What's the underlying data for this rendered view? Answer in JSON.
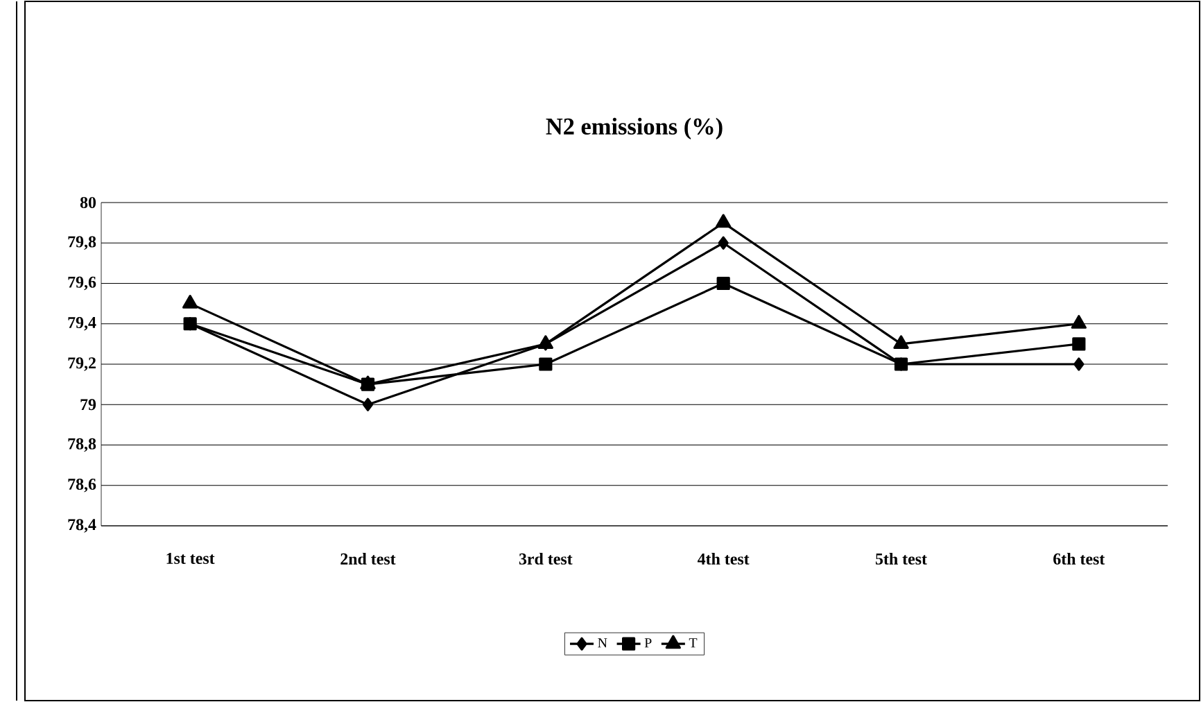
{
  "chart_data": {
    "type": "line",
    "title": "N2 emissions  (%)",
    "categories": [
      "1st test",
      "2nd test",
      "3rd test",
      "4th test",
      "5th test",
      "6th test"
    ],
    "series": [
      {
        "name": "N",
        "color": "#000000",
        "marker": "diamond",
        "values": [
          79.4,
          79.0,
          79.3,
          79.8,
          79.2,
          79.2
        ]
      },
      {
        "name": "P",
        "color": "#000000",
        "marker": "square",
        "values": [
          79.4,
          79.1,
          79.2,
          79.6,
          79.2,
          79.3
        ]
      },
      {
        "name": "T",
        "color": "#000000",
        "marker": "triangle",
        "values": [
          79.5,
          79.1,
          79.3,
          79.9,
          79.3,
          79.4
        ]
      }
    ],
    "ylim": [
      78.4,
      80
    ],
    "yticks": [
      {
        "value": 78.4,
        "label": "78,4"
      },
      {
        "value": 78.6,
        "label": "78,6"
      },
      {
        "value": 78.8,
        "label": "78,8"
      },
      {
        "value": 79,
        "label": "79"
      },
      {
        "value": 79.2,
        "label": "79,2"
      },
      {
        "value": 79.4,
        "label": "79,4"
      },
      {
        "value": 79.6,
        "label": "79,6"
      },
      {
        "value": 79.8,
        "label": "79,8"
      },
      {
        "value": 80,
        "label": "80"
      }
    ],
    "grid": "y",
    "legend": "bottom",
    "line_style": "solid"
  }
}
